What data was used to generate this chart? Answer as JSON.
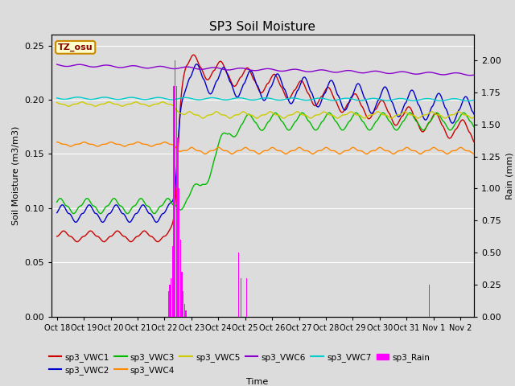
{
  "title": "SP3 Soil Moisture",
  "xlabel": "Time",
  "ylabel_left": "Soil Moisture (m3/m3)",
  "ylabel_right": "Rain (mm)",
  "xlim_days": [
    -0.2,
    15.5
  ],
  "ylim_left": [
    0.0,
    0.26
  ],
  "ylim_right": [
    0.0,
    2.2
  ],
  "x_tick_labels": [
    "Oct 18",
    "Oct 19",
    "Oct 20",
    "Oct 21",
    "Oct 22",
    "Oct 23",
    "Oct 24",
    "Oct 25",
    "Oct 26",
    "Oct 27",
    "Oct 28",
    "Oct 29",
    "Oct 30",
    "Oct 31",
    "Nov 1",
    "Nov 2"
  ],
  "bg_color": "#dcdcdc",
  "grid_color": "#ffffff",
  "legend_label": "TZ_osu",
  "legend_bg": "#ffffcc",
  "legend_border": "#cc8800",
  "colors": {
    "VWC1": "#cc0000",
    "VWC2": "#0000cc",
    "VWC3": "#00bb00",
    "VWC4": "#ff8800",
    "VWC5": "#cccc00",
    "VWC6": "#8800cc",
    "VWC7": "#00cccc",
    "Rain": "#ff00ff"
  }
}
